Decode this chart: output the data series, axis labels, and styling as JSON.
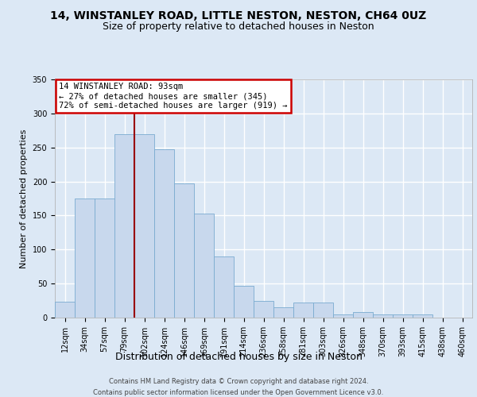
{
  "title1": "14, WINSTANLEY ROAD, LITTLE NESTON, NESTON, CH64 0UZ",
  "title2": "Size of property relative to detached houses in Neston",
  "xlabel": "Distribution of detached houses by size in Neston",
  "ylabel": "Number of detached properties",
  "categories": [
    "12sqm",
    "34sqm",
    "57sqm",
    "79sqm",
    "102sqm",
    "124sqm",
    "146sqm",
    "169sqm",
    "191sqm",
    "214sqm",
    "236sqm",
    "258sqm",
    "281sqm",
    "303sqm",
    "326sqm",
    "348sqm",
    "370sqm",
    "393sqm",
    "415sqm",
    "438sqm",
    "460sqm"
  ],
  "values": [
    23,
    175,
    175,
    270,
    270,
    247,
    197,
    153,
    90,
    47,
    25,
    15,
    22,
    22,
    5,
    8,
    5,
    5,
    5,
    0,
    0
  ],
  "bar_color": "#c8d8ed",
  "bar_edge_color": "#7aabd0",
  "vline_color": "#990000",
  "vline_pos": 3.5,
  "annotation_text": "14 WINSTANLEY ROAD: 93sqm\n← 27% of detached houses are smaller (345)\n72% of semi-detached houses are larger (919) →",
  "annotation_box_facecolor": "#ffffff",
  "annotation_box_edgecolor": "#cc0000",
  "footnote1": "Contains HM Land Registry data © Crown copyright and database right 2024.",
  "footnote2": "Contains public sector information licensed under the Open Government Licence v3.0.",
  "fig_facecolor": "#dce8f5",
  "axes_facecolor": "#dce8f5",
  "grid_color": "#ffffff",
  "ylim": [
    0,
    350
  ],
  "yticks": [
    0,
    50,
    100,
    150,
    200,
    250,
    300,
    350
  ],
  "title1_fontsize": 10,
  "title2_fontsize": 9,
  "ylabel_fontsize": 8,
  "xlabel_fontsize": 9,
  "tick_fontsize": 7,
  "footnote_fontsize": 6
}
